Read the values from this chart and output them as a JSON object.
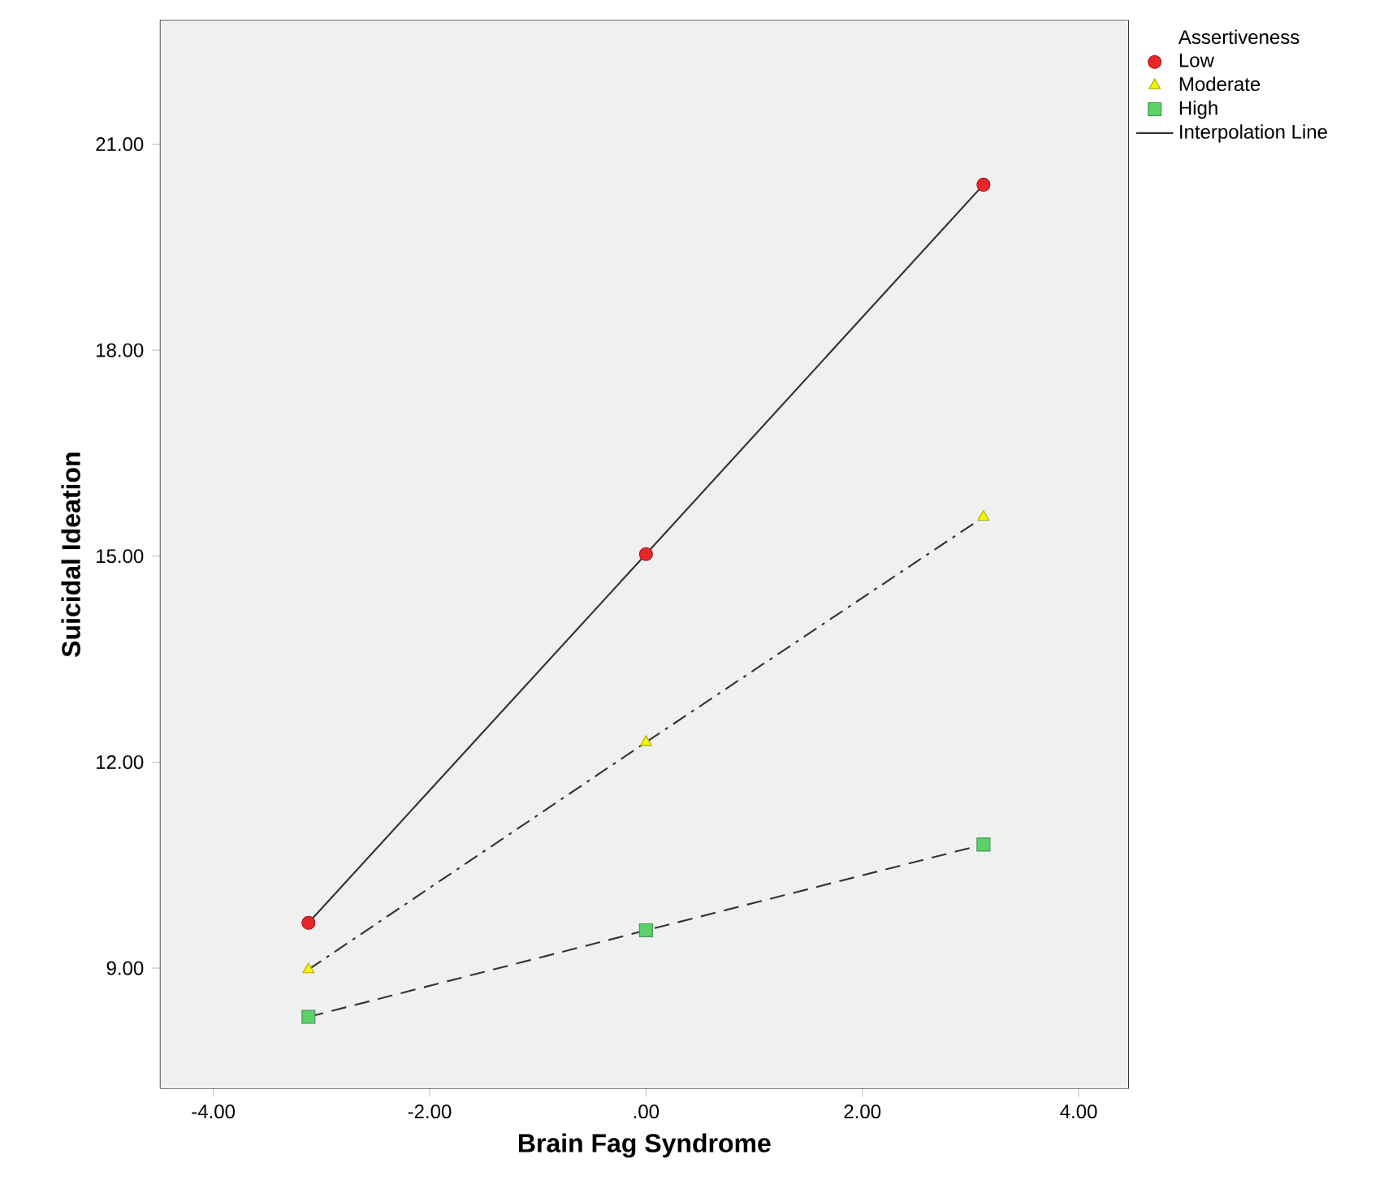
{
  "chart_data": {
    "type": "line",
    "xlabel": "Brain Fag Syndrome",
    "ylabel": "Suicidal Ideation",
    "legend_title": "Assertiveness",
    "legend": "top right",
    "x": [
      -3.12,
      0,
      3.12
    ],
    "xlim": [
      -4.49,
      4.46
    ],
    "ylim": [
      7.25,
      22.8
    ],
    "xticks": [
      {
        "value": -4,
        "label": "-4.00"
      },
      {
        "value": -2,
        "label": "-2.00"
      },
      {
        "value": 0,
        "label": ".00"
      },
      {
        "value": 2,
        "label": "2.00"
      },
      {
        "value": 4,
        "label": "4.00"
      }
    ],
    "yticks": [
      {
        "value": 9,
        "label": "9.00"
      },
      {
        "value": 12,
        "label": "12.00"
      },
      {
        "value": 15,
        "label": "15.00"
      },
      {
        "value": 18,
        "label": "18.00"
      },
      {
        "value": 21,
        "label": "21.00"
      }
    ],
    "series": [
      {
        "name": "Interpolation Line",
        "color": "#333333",
        "line_style": "solid",
        "marker": "none",
        "values": [
          9.66,
          15.03,
          20.41
        ]
      },
      {
        "color": "#333333",
        "line_style": "dashdot",
        "marker": "none",
        "values": [
          8.98,
          12.29,
          15.57
        ]
      },
      {
        "color": "#333333",
        "line_style": "dashed",
        "marker": "none",
        "values": [
          8.29,
          9.55,
          10.8
        ]
      },
      {
        "type": "scatter",
        "name": "Low",
        "color": "#e8262a",
        "marker": "circle",
        "values": [
          9.66,
          15.03,
          20.41
        ]
      },
      {
        "type": "scatter",
        "name": "Moderate",
        "color": "#f5f500",
        "marker": "triangle",
        "values": [
          8.98,
          12.29,
          15.57
        ]
      },
      {
        "type": "scatter",
        "name": "High",
        "color": "#5bd16a",
        "marker": "square",
        "values": [
          8.29,
          9.55,
          10.8
        ]
      }
    ]
  }
}
